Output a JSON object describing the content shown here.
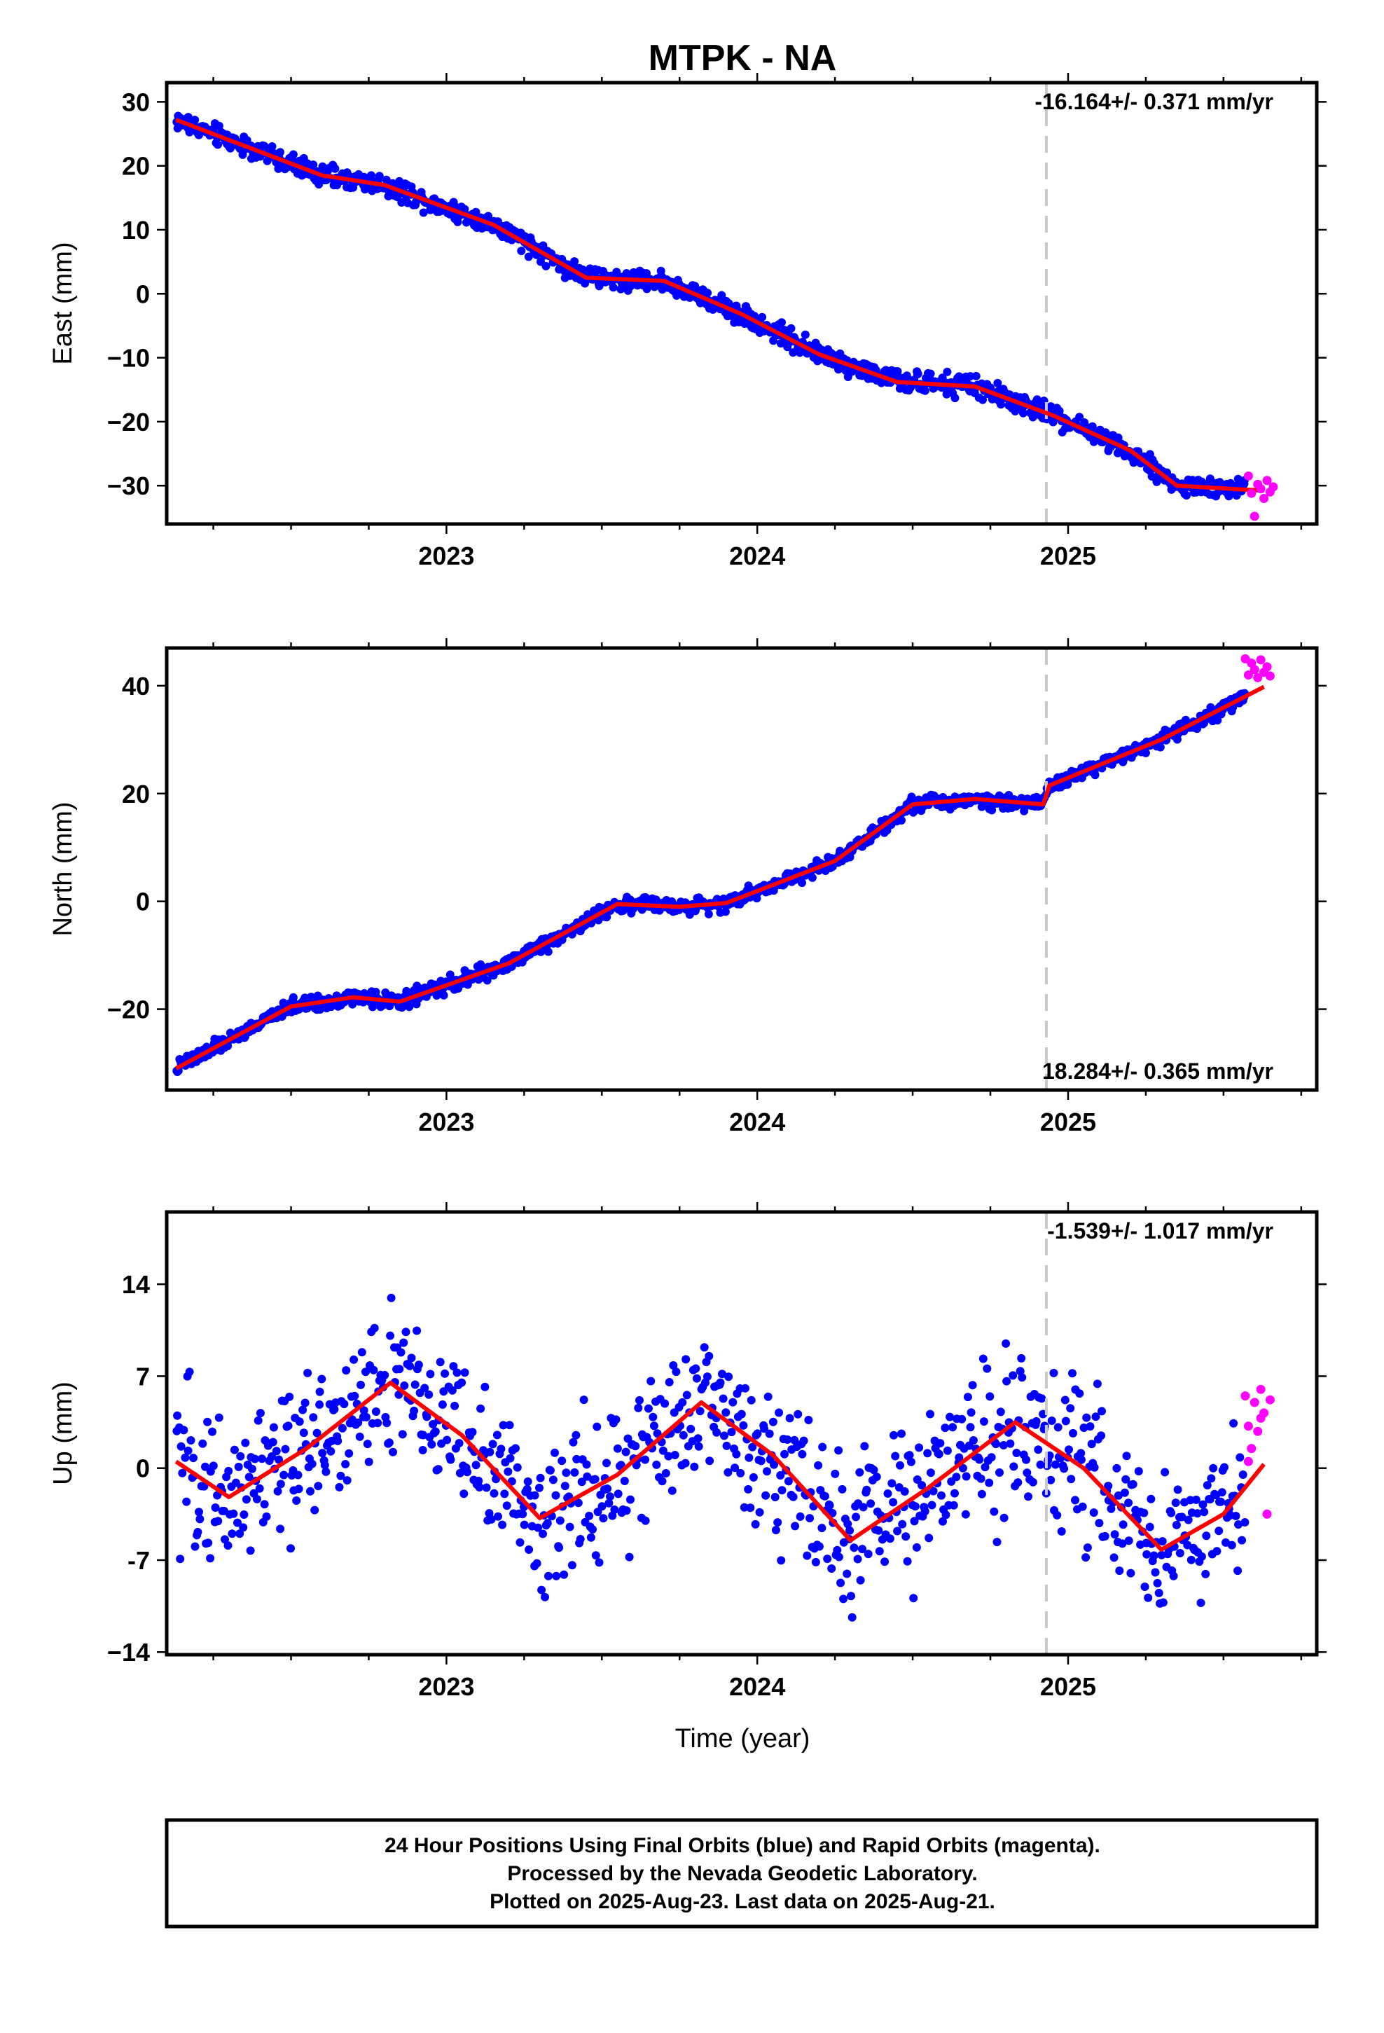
{
  "chart_data": {
    "title": "MTPK - NA",
    "xlabel": "Time (year)",
    "x_ticks": [
      "2023",
      "2024",
      "2025"
    ],
    "x_range": [
      2022.1,
      2025.8
    ],
    "vertical_marker_x": 2024.93,
    "colors": {
      "final_orbits": "#0000ff",
      "rapid_orbits": "#ff00ff",
      "model_fit": "#ff0000",
      "marker_line": "#c8c8c8"
    },
    "panels": [
      {
        "type": "scatter",
        "ylabel": "East (mm)",
        "ylim": [
          -36,
          33
        ],
        "yticks": [
          30,
          20,
          10,
          0,
          -10,
          -20,
          -30
        ],
        "ytick_labels": [
          "30",
          "20",
          "10",
          "0",
          "−10",
          "−20",
          "−30"
        ],
        "rate_text": "-16.164+/- 0.371 mm/yr",
        "rate_position": "top-right",
        "model": {
          "x0": 2022.13,
          "y0": 27.5,
          "rate": -16.164,
          "annual_sin": 0.2,
          "annual_cos": 3.6,
          "phase": 0,
          "step_time": null,
          "step": 0,
          "noise": 1.2
        },
        "fit_points": [
          [
            2022.13,
            27.2
          ],
          [
            2022.6,
            18.5
          ],
          [
            2022.8,
            17.0
          ],
          [
            2023.15,
            10.8
          ],
          [
            2023.45,
            2.5
          ],
          [
            2023.7,
            2.0
          ],
          [
            2023.95,
            -3.2
          ],
          [
            2024.2,
            -9.5
          ],
          [
            2024.45,
            -13.8
          ],
          [
            2024.7,
            -14.5
          ],
          [
            2024.95,
            -19.0
          ],
          [
            2025.2,
            -24.5
          ],
          [
            2025.35,
            -30.0
          ],
          [
            2025.63,
            -30.8
          ]
        ],
        "rapid_points": [
          [
            2025.58,
            -28.5
          ],
          [
            2025.59,
            -31.2
          ],
          [
            2025.6,
            -34.8
          ],
          [
            2025.61,
            -29.8
          ],
          [
            2025.62,
            -30.5
          ],
          [
            2025.63,
            -32.0
          ],
          [
            2025.64,
            -29.2
          ],
          [
            2025.65,
            -31.0
          ],
          [
            2025.66,
            -30.2
          ]
        ]
      },
      {
        "type": "scatter",
        "ylabel": "North (mm)",
        "ylim": [
          -35,
          47
        ],
        "yticks": [
          40,
          20,
          0,
          -20
        ],
        "ytick_labels": [
          "40",
          "20",
          "0",
          "−20"
        ],
        "rate_text": "18.284+/- 0.365 mm/yr",
        "rate_position": "bottom-right",
        "model": {
          "x0": 2022.13,
          "y0": -31.0,
          "rate": 18.284,
          "annual_sin": 0,
          "annual_cos": 0,
          "step_time": 2024.93,
          "step": 3.0,
          "noise": 1.0
        },
        "fit_points": [
          [
            2022.13,
            -31.0
          ],
          [
            2022.5,
            -19.5
          ],
          [
            2022.7,
            -17.8
          ],
          [
            2022.85,
            -18.6
          ],
          [
            2023.2,
            -11.5
          ],
          [
            2023.55,
            -0.5
          ],
          [
            2023.75,
            -1.0
          ],
          [
            2023.9,
            -0.3
          ],
          [
            2024.25,
            7.5
          ],
          [
            2024.5,
            18.0
          ],
          [
            2024.7,
            19.0
          ],
          [
            2024.92,
            18.0
          ],
          [
            2024.94,
            21.5
          ],
          [
            2025.3,
            30.0
          ],
          [
            2025.63,
            39.8
          ]
        ],
        "rapid_points": [
          [
            2025.57,
            45.0
          ],
          [
            2025.58,
            42.0
          ],
          [
            2025.59,
            44.2
          ],
          [
            2025.6,
            43.0
          ],
          [
            2025.61,
            41.5
          ],
          [
            2025.62,
            44.8
          ],
          [
            2025.63,
            42.5
          ],
          [
            2025.64,
            43.5
          ],
          [
            2025.65,
            41.8
          ]
        ]
      },
      {
        "type": "scatter",
        "ylabel": "Up (mm)",
        "ylim": [
          -14.2,
          19.5
        ],
        "yticks": [
          14,
          7,
          0,
          -7,
          -14
        ],
        "ytick_labels": [
          "14",
          "7",
          "0",
          "-7",
          "−14"
        ],
        "rate_text": "-1.539+/- 1.017 mm/yr",
        "rate_position": "top-right",
        "model": {
          "x0": 2022.13,
          "y0": 0.5,
          "rate": -1.539,
          "annual_sin": 0,
          "annual_cos": 4.4,
          "step_time": null,
          "step": 0,
          "noise": 3.0
        },
        "fit_points": [
          [
            2022.13,
            0.5
          ],
          [
            2022.3,
            -2.2
          ],
          [
            2022.55,
            1.5
          ],
          [
            2022.82,
            6.5
          ],
          [
            2023.05,
            2.5
          ],
          [
            2023.3,
            -3.8
          ],
          [
            2023.55,
            -0.5
          ],
          [
            2023.82,
            5.0
          ],
          [
            2024.05,
            1.0
          ],
          [
            2024.3,
            -5.5
          ],
          [
            2024.55,
            -1.5
          ],
          [
            2024.83,
            3.5
          ],
          [
            2025.05,
            0.0
          ],
          [
            2025.3,
            -6.2
          ],
          [
            2025.5,
            -3.5
          ],
          [
            2025.63,
            0.3
          ]
        ],
        "rapid_points": [
          [
            2025.57,
            5.5
          ],
          [
            2025.58,
            3.2
          ],
          [
            2025.59,
            1.5
          ],
          [
            2025.6,
            5.0
          ],
          [
            2025.61,
            2.8
          ],
          [
            2025.62,
            6.0
          ],
          [
            2025.63,
            4.2
          ],
          [
            2025.64,
            -3.5
          ],
          [
            2025.65,
            5.2
          ],
          [
            2025.58,
            0.5
          ],
          [
            2025.62,
            3.8
          ]
        ]
      }
    ]
  },
  "footer": {
    "line1": "24 Hour Positions Using Final Orbits (blue) and Rapid Orbits (magenta).",
    "line2": "Processed by the Nevada Geodetic Laboratory.",
    "line3": "Plotted on 2025-Aug-23. Last data on 2025-Aug-21."
  }
}
